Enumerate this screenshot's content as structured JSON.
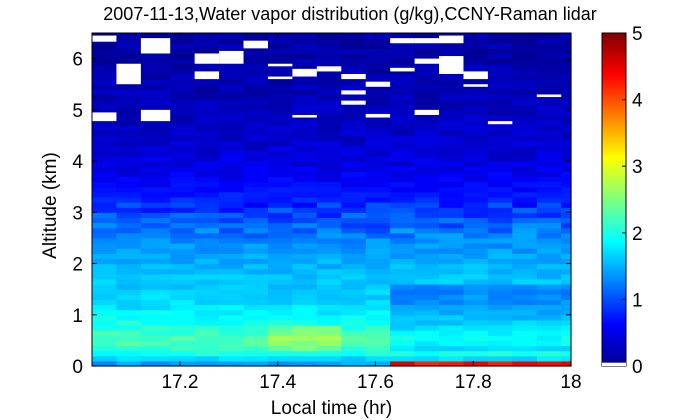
{
  "chart_data": {
    "type": "heatmap",
    "title": "2007-11-13,Water vapor distribution (g/kg),CCNY-Raman lidar",
    "xlabel": "Local time (hr)",
    "ylabel": "Altitude (km)",
    "xlim": [
      17.02,
      18.0
    ],
    "ylim": [
      0,
      6.5
    ],
    "x_ticks": [
      17.2,
      17.4,
      17.6,
      17.8,
      18
    ],
    "x_tick_labels": [
      "17.2",
      "17.4",
      "17.6",
      "17.8",
      "18"
    ],
    "y_ticks": [
      0,
      1,
      2,
      3,
      4,
      5,
      6
    ],
    "y_tick_labels": [
      "0",
      "1",
      "2",
      "3",
      "4",
      "5",
      "6"
    ],
    "colorbar": {
      "range": [
        0,
        5
      ],
      "ticks": [
        0,
        1,
        2,
        3,
        4,
        5
      ],
      "tick_labels": [
        "0",
        "1",
        "2",
        "3",
        "4",
        "5"
      ],
      "colormap": "jet"
    },
    "time_steps": [
      17.02,
      17.07,
      17.12,
      17.18,
      17.23,
      17.28,
      17.33,
      17.38,
      17.43,
      17.48,
      17.53,
      17.58,
      17.63,
      17.68,
      17.73,
      17.78,
      17.83,
      17.88,
      17.93,
      17.98
    ],
    "altitude_profile_km": [
      0.0,
      0.1,
      0.2,
      0.5,
      0.8,
      1.2,
      1.6,
      2.0,
      2.5,
      2.9,
      3.2,
      3.6,
      4.0,
      4.5,
      5.0,
      5.5,
      6.0,
      6.5
    ],
    "mixing_ratio_profile_gkg": [
      1.3,
      1.5,
      1.9,
      2.3,
      2.0,
      1.7,
      1.6,
      1.5,
      1.3,
      1.0,
      0.8,
      0.6,
      0.45,
      0.35,
      0.3,
      0.25,
      0.2,
      0.2
    ],
    "late_surface_layer": {
      "start_hr": 17.6,
      "top_km": 0.15,
      "value_gkg": 4.6
    },
    "missing_data": [
      {
        "t0": 17.02,
        "t1": 17.07,
        "z0": 6.33,
        "z1": 6.45
      },
      {
        "t0": 17.07,
        "t1": 17.12,
        "z0": 5.5,
        "z1": 5.9
      },
      {
        "t0": 17.02,
        "t1": 17.07,
        "z0": 4.78,
        "z1": 4.95
      },
      {
        "t0": 17.12,
        "t1": 17.18,
        "z0": 4.78,
        "z1": 5.0
      },
      {
        "t0": 17.12,
        "t1": 17.18,
        "z0": 6.1,
        "z1": 6.4
      },
      {
        "t0": 17.23,
        "t1": 17.28,
        "z0": 5.9,
        "z1": 6.1
      },
      {
        "t0": 17.23,
        "t1": 17.28,
        "z0": 5.6,
        "z1": 5.75
      },
      {
        "t0": 17.28,
        "t1": 17.33,
        "z0": 5.9,
        "z1": 6.15
      },
      {
        "t0": 17.33,
        "t1": 17.38,
        "z0": 6.2,
        "z1": 6.35
      },
      {
        "t0": 17.38,
        "t1": 17.43,
        "z0": 5.85,
        "z1": 5.9
      },
      {
        "t0": 17.38,
        "t1": 17.43,
        "z0": 5.6,
        "z1": 5.65
      },
      {
        "t0": 17.43,
        "t1": 17.48,
        "z0": 5.65,
        "z1": 5.8
      },
      {
        "t0": 17.43,
        "t1": 17.48,
        "z0": 4.85,
        "z1": 4.9
      },
      {
        "t0": 17.48,
        "t1": 17.53,
        "z0": 5.75,
        "z1": 5.85
      },
      {
        "t0": 17.53,
        "t1": 17.58,
        "z0": 5.6,
        "z1": 5.7
      },
      {
        "t0": 17.53,
        "t1": 17.58,
        "z0": 5.3,
        "z1": 5.38
      },
      {
        "t0": 17.53,
        "t1": 17.58,
        "z0": 5.1,
        "z1": 5.18
      },
      {
        "t0": 17.58,
        "t1": 17.63,
        "z0": 5.45,
        "z1": 5.55
      },
      {
        "t0": 17.58,
        "t1": 17.63,
        "z0": 4.85,
        "z1": 4.92
      },
      {
        "t0": 17.63,
        "t1": 17.68,
        "z0": 6.3,
        "z1": 6.4
      },
      {
        "t0": 17.63,
        "t1": 17.68,
        "z0": 5.75,
        "z1": 5.82
      },
      {
        "t0": 17.68,
        "t1": 17.73,
        "z0": 6.3,
        "z1": 6.4
      },
      {
        "t0": 17.68,
        "t1": 17.73,
        "z0": 5.9,
        "z1": 6.0
      },
      {
        "t0": 17.68,
        "t1": 17.73,
        "z0": 4.9,
        "z1": 5.0
      },
      {
        "t0": 17.73,
        "t1": 17.78,
        "z0": 5.7,
        "z1": 6.05
      },
      {
        "t0": 17.73,
        "t1": 17.78,
        "z0": 6.3,
        "z1": 6.45
      },
      {
        "t0": 17.78,
        "t1": 17.83,
        "z0": 5.6,
        "z1": 5.75
      },
      {
        "t0": 17.78,
        "t1": 17.83,
        "z0": 5.45,
        "z1": 5.5
      },
      {
        "t0": 17.83,
        "t1": 17.88,
        "z0": 4.72,
        "z1": 4.78
      },
      {
        "t0": 17.93,
        "t1": 17.98,
        "z0": 5.25,
        "z1": 5.3
      }
    ]
  }
}
